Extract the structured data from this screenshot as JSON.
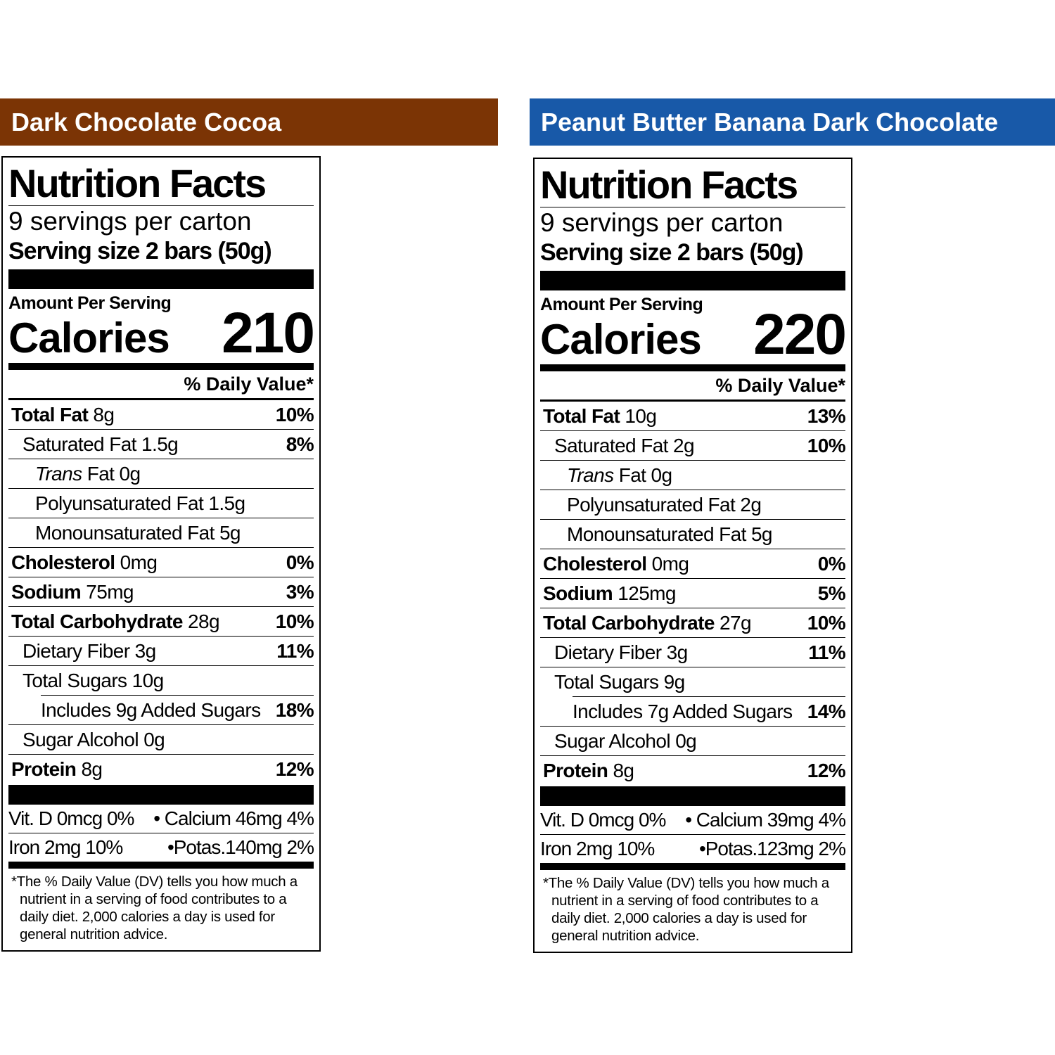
{
  "panels": [
    {
      "banner": "Dark Chocolate Cocoa",
      "label": {
        "title": "Nutrition Facts",
        "servings": "9 servings per carton",
        "serving_size": "Serving size 2 bars (50g)",
        "amount_per_serving": "Amount Per Serving",
        "calories_label": "Calories",
        "calories": 210,
        "daily_value_header": "% Daily Value*",
        "nutrients": [
          {
            "name": "Total Fat",
            "amount": "8g",
            "dv": "10%"
          },
          {
            "name": "Saturated Fat",
            "amount": "1.5g",
            "dv": "8%"
          },
          {
            "name": "Trans",
            "amount": "Fat 0g"
          },
          {
            "name": "Polyunsaturated Fat",
            "amount": "1.5g"
          },
          {
            "name": "Monounsaturated Fat",
            "amount": "5g"
          },
          {
            "name": "Cholesterol",
            "amount": "0mg",
            "dv": "0%"
          },
          {
            "name": "Sodium",
            "amount": "75mg",
            "dv": "3%"
          },
          {
            "name": "Total Carbohydrate",
            "amount": "28g",
            "dv": "10%"
          },
          {
            "name": "Dietary Fiber",
            "amount": "3g",
            "dv": "11%"
          },
          {
            "name": "Total Sugars",
            "amount": "10g"
          },
          {
            "name": "Includes 9g Added Sugars",
            "dv": "18%"
          },
          {
            "name": "Sugar Alcohol",
            "amount": "0g"
          },
          {
            "name": "Protein",
            "amount": "8g",
            "dv": "12%"
          }
        ],
        "vitamins": [
          [
            "Vit. D 0mcg 0%",
            "• Calcium 46mg 4%"
          ],
          [
            "Iron 2mg 10%",
            "•Potas.140mg 2%"
          ]
        ],
        "footnote": "*The % Daily Value (DV) tells you how much a nutrient in a serving of food contributes to a daily diet. 2,000 calories a day is used for general nutrition advice."
      }
    },
    {
      "banner": "Peanut Butter Banana Dark Chocolate",
      "label": {
        "title": "Nutrition Facts",
        "servings": "9 servings per carton",
        "serving_size": "Serving size 2 bars (50g)",
        "amount_per_serving": "Amount Per Serving",
        "calories_label": "Calories",
        "calories": 220,
        "daily_value_header": "% Daily Value*",
        "nutrients": [
          {
            "name": "Total Fat",
            "amount": "10g",
            "dv": "13%"
          },
          {
            "name": "Saturated Fat",
            "amount": "2g",
            "dv": "10%"
          },
          {
            "name": "Trans",
            "amount": "Fat 0g"
          },
          {
            "name": "Polyunsaturated Fat",
            "amount": "2g"
          },
          {
            "name": "Monounsaturated Fat",
            "amount": "5g"
          },
          {
            "name": "Cholesterol",
            "amount": "0mg",
            "dv": "0%"
          },
          {
            "name": "Sodium",
            "amount": "125mg",
            "dv": "5%"
          },
          {
            "name": "Total Carbohydrate",
            "amount": "27g",
            "dv": "10%"
          },
          {
            "name": "Dietary Fiber",
            "amount": "3g",
            "dv": "11%"
          },
          {
            "name": "Total Sugars",
            "amount": "9g"
          },
          {
            "name": "Includes 7g Added Sugars",
            "dv": "14%"
          },
          {
            "name": "Sugar Alcohol",
            "amount": "0g"
          },
          {
            "name": "Protein",
            "amount": "8g",
            "dv": "12%"
          }
        ],
        "vitamins": [
          [
            "Vit. D 0mcg 0%",
            "• Calcium 39mg 4%"
          ],
          [
            "Iron 2mg 10%",
            "•Potas.123mg 2%"
          ]
        ],
        "footnote": "*The % Daily Value (DV) tells you how much a nutrient in a serving of food contributes to a daily diet. 2,000 calories a day is used for general nutrition advice."
      }
    }
  ]
}
